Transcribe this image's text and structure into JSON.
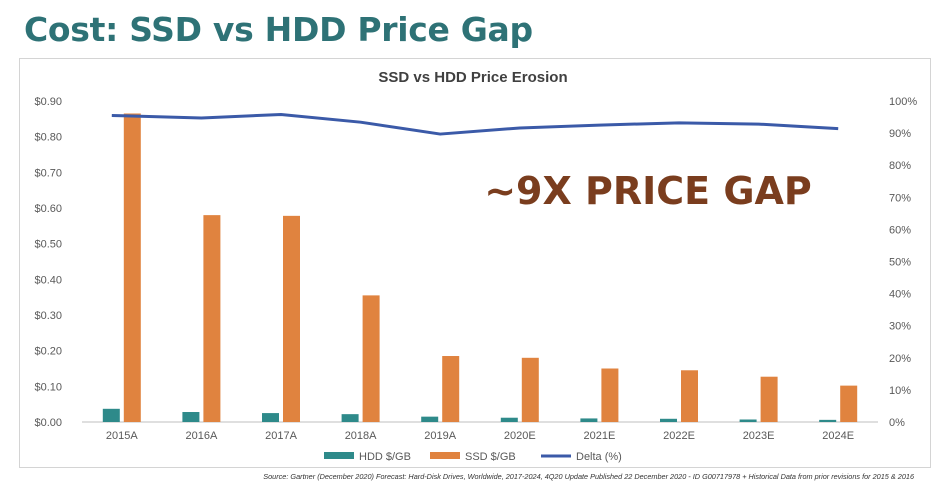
{
  "slide": {
    "title": "Cost: SSD vs HDD Price Gap"
  },
  "callout": "~9X PRICE GAP",
  "source": "Source: Gartner (December 2020) Forecast: Hard-Disk Drives, Worldwide, 2017-2024, 4Q20 Update Published 22 December 2020 - ID G00717978 + Historical Data from prior revisions for 2015 & 2016",
  "colors": {
    "hdd": "#2e8a8a",
    "ssd": "#e0833f",
    "delta": "#3b5aa8",
    "title": "#2e7276",
    "callout": "#7a3d1e"
  },
  "chart_data": {
    "type": "bar",
    "title": "SSD vs HDD Price Erosion",
    "categories": [
      "2015A",
      "2016A",
      "2017A",
      "2018A",
      "2019A",
      "2020E",
      "2021E",
      "2022E",
      "2023E",
      "2024E"
    ],
    "series": [
      {
        "name": "HDD $/GB",
        "type": "bar",
        "axis": "left",
        "values": [
          0.037,
          0.028,
          0.025,
          0.022,
          0.015,
          0.012,
          0.01,
          0.009,
          0.007,
          0.006
        ]
      },
      {
        "name": "SSD $/GB",
        "type": "bar",
        "axis": "left",
        "values": [
          0.865,
          0.58,
          0.578,
          0.355,
          0.185,
          0.18,
          0.15,
          0.145,
          0.127,
          0.102
        ]
      },
      {
        "name": "Delta (%)",
        "type": "line",
        "axis": "right",
        "values": [
          95.5,
          94.7,
          95.8,
          93.4,
          89.7,
          91.6,
          92.5,
          93.2,
          92.8,
          91.4
        ]
      }
    ],
    "left_axis": {
      "ylim": [
        0,
        0.9
      ],
      "ticks": [
        "$0.00",
        "$0.10",
        "$0.20",
        "$0.30",
        "$0.40",
        "$0.50",
        "$0.60",
        "$0.70",
        "$0.80",
        "$0.90"
      ]
    },
    "right_axis": {
      "ylim": [
        0,
        100
      ],
      "ticks": [
        "0%",
        "10%",
        "20%",
        "30%",
        "40%",
        "50%",
        "60%",
        "70%",
        "80%",
        "90%",
        "100%"
      ]
    },
    "legend": {
      "position": "bottom"
    }
  }
}
